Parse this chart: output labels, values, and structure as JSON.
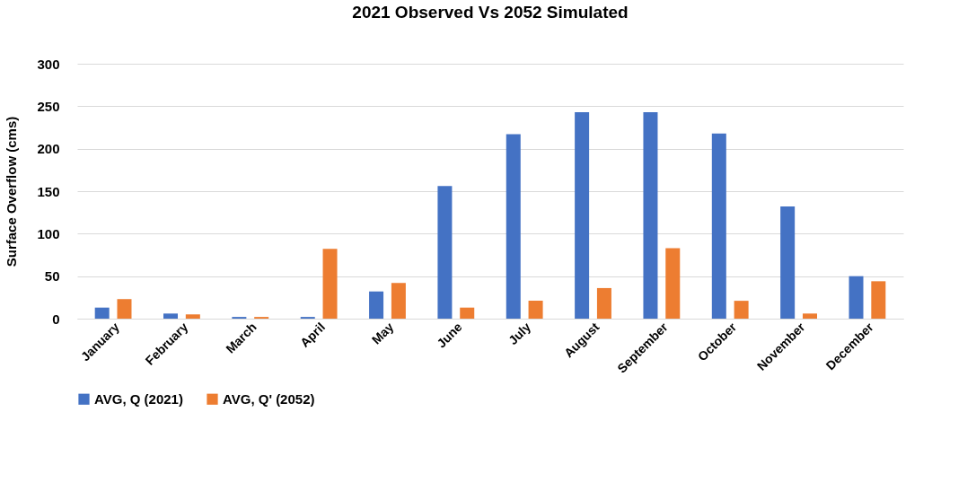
{
  "chart_data": {
    "type": "bar",
    "title": "2021 Observed Vs 2052 Simulated",
    "ylabel": "Surface Overflow (cms)",
    "categories": [
      "January",
      "February",
      "March",
      "April",
      "May",
      "June",
      "July",
      "August",
      "September",
      "October",
      "November",
      "December"
    ],
    "series": [
      {
        "name": "AVG, Q (2021)",
        "color": "#4472c4",
        "values": [
          13,
          6,
          2,
          2,
          32,
          156,
          217,
          243,
          243,
          218,
          132,
          50
        ]
      },
      {
        "name": "AVG, Q' (2052)",
        "color": "#ed7d31",
        "values": [
          23,
          5,
          2,
          82,
          42,
          13,
          21,
          36,
          83,
          21,
          6,
          44
        ]
      }
    ],
    "ylim": [
      0,
      300
    ],
    "yticks": [
      0,
      50,
      100,
      150,
      200,
      250,
      300
    ],
    "grid": "y",
    "legend": "bottom"
  }
}
